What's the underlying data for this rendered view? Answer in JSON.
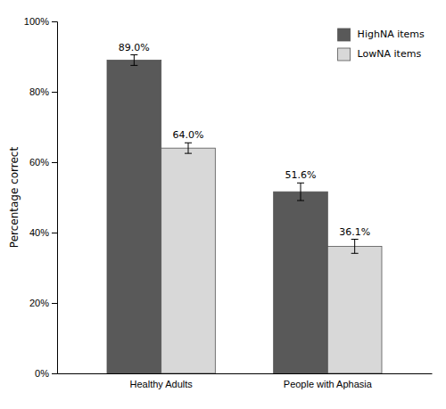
{
  "chart_data": {
    "type": "bar",
    "ylabel": "Percentage correct",
    "categories": [
      "Healthy Adults",
      "People with Aphasia"
    ],
    "series": [
      {
        "name": "HighNA items",
        "color": "#595959",
        "values": [
          89.0,
          51.6
        ],
        "errors": [
          1.5,
          2.5
        ],
        "value_labels": [
          "89.0%",
          "51.6%"
        ]
      },
      {
        "name": "LowNA items",
        "color": "#d8d8d8",
        "values": [
          64.0,
          36.1
        ],
        "errors": [
          1.5,
          2.0
        ],
        "value_labels": [
          "64.0%",
          "36.1%"
        ]
      }
    ],
    "ylim": [
      0,
      100
    ],
    "yticks": [
      {
        "value": 0,
        "label": "0%"
      },
      {
        "value": 20,
        "label": "20%"
      },
      {
        "value": 40,
        "label": "40%"
      },
      {
        "value": 60,
        "label": "60%"
      },
      {
        "value": 80,
        "label": "80%"
      },
      {
        "value": 100,
        "label": "100%"
      }
    ],
    "legend": "upper right",
    "data_labels": true,
    "grid": false
  }
}
